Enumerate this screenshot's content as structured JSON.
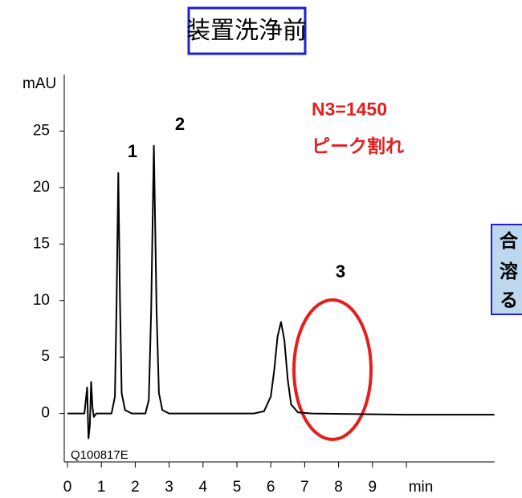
{
  "chart_data": {
    "type": "line",
    "title": "装置洗浄前",
    "ylabel": "mAU",
    "x": [
      0,
      0.5,
      0.58,
      0.62,
      0.66,
      0.7,
      0.74,
      0.78,
      0.85,
      1.0,
      1.3,
      1.4,
      1.45,
      1.5,
      1.55,
      1.6,
      1.7,
      1.9,
      2.3,
      2.4,
      2.47,
      2.55,
      2.63,
      2.7,
      2.8,
      3.0,
      5.5,
      5.8,
      6.0,
      6.1,
      6.2,
      6.3,
      6.4,
      6.5,
      6.6,
      6.8,
      7.2,
      10,
      12.6
    ],
    "series": [
      {
        "color": "#000000",
        "values": [
          0,
          0,
          2.3,
          -2.2,
          -1,
          2.8,
          0.5,
          -0.3,
          0,
          0,
          0,
          1.5,
          10,
          21.3,
          10,
          1.8,
          0.3,
          0,
          0,
          1.2,
          9,
          23.7,
          9,
          1.8,
          0.3,
          0,
          0,
          0.2,
          1.5,
          3.8,
          6.8,
          8.1,
          6.5,
          3,
          0.8,
          0.1,
          0,
          -0.1,
          -0.1
        ]
      }
    ],
    "xlim": [
      0,
      12.6
    ],
    "ylim": [
      -4,
      30
    ],
    "xticks": [
      0,
      1,
      2,
      3,
      4,
      5,
      6,
      7,
      8,
      9,
      {
        "value": 10,
        "label": "min"
      }
    ],
    "yticks": [
      0,
      5,
      10,
      15,
      20,
      25
    ],
    "peak_labels": [
      "1",
      "2",
      "3"
    ],
    "annotations": [
      "N3=1450",
      "ピーク割れ"
    ],
    "sample_id": "Q100817E",
    "side_note": [
      "合",
      "溶",
      "る"
    ]
  }
}
